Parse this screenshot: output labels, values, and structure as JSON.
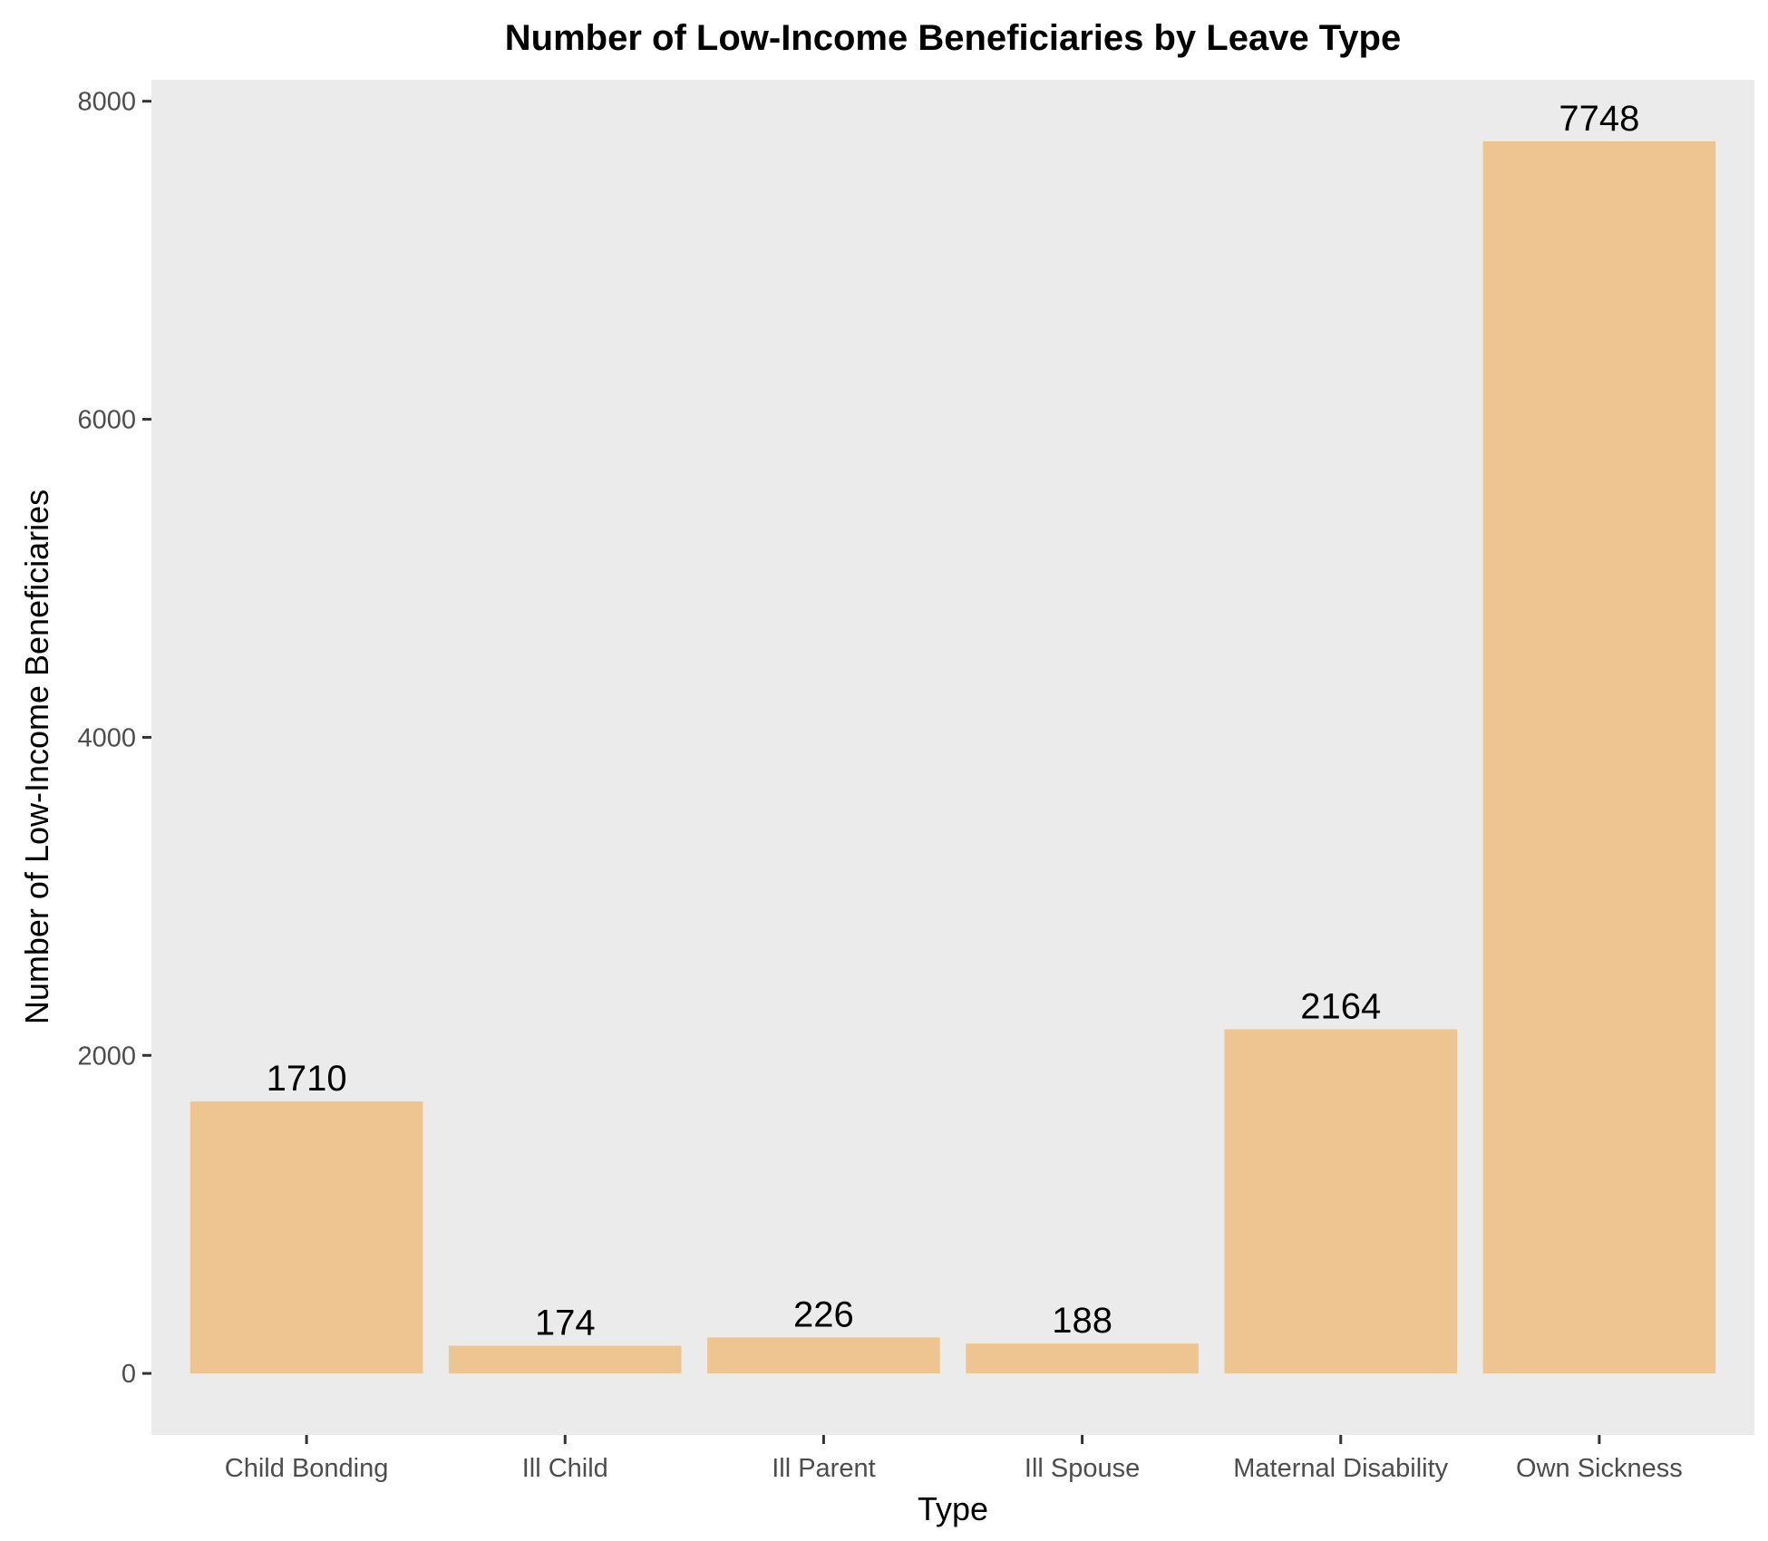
{
  "chart_data": {
    "type": "bar",
    "title": "Number of Low-Income Beneficiaries by Leave Type",
    "xlabel": "Type",
    "ylabel": "Number of Low-Income Beneficiaries",
    "categories": [
      "Child Bonding",
      "Ill Child",
      "Ill Parent",
      "Ill Spouse",
      "Maternal Disability",
      "Own Sickness"
    ],
    "values": [
      1710,
      174,
      226,
      188,
      2164,
      7748
    ],
    "data_labels": [
      "1710",
      "174",
      "226",
      "188",
      "2164",
      "7748"
    ],
    "yticks": [
      0,
      2000,
      4000,
      6000,
      8000
    ],
    "ytick_labels": [
      "0",
      "2000",
      "4000",
      "6000",
      "8000"
    ],
    "ylim": [
      -387,
      8135
    ],
    "grid": false,
    "legend": "none",
    "colors": {
      "bar": "#EEC591",
      "panel": "#EBEBEB",
      "tick": "#333333"
    }
  }
}
